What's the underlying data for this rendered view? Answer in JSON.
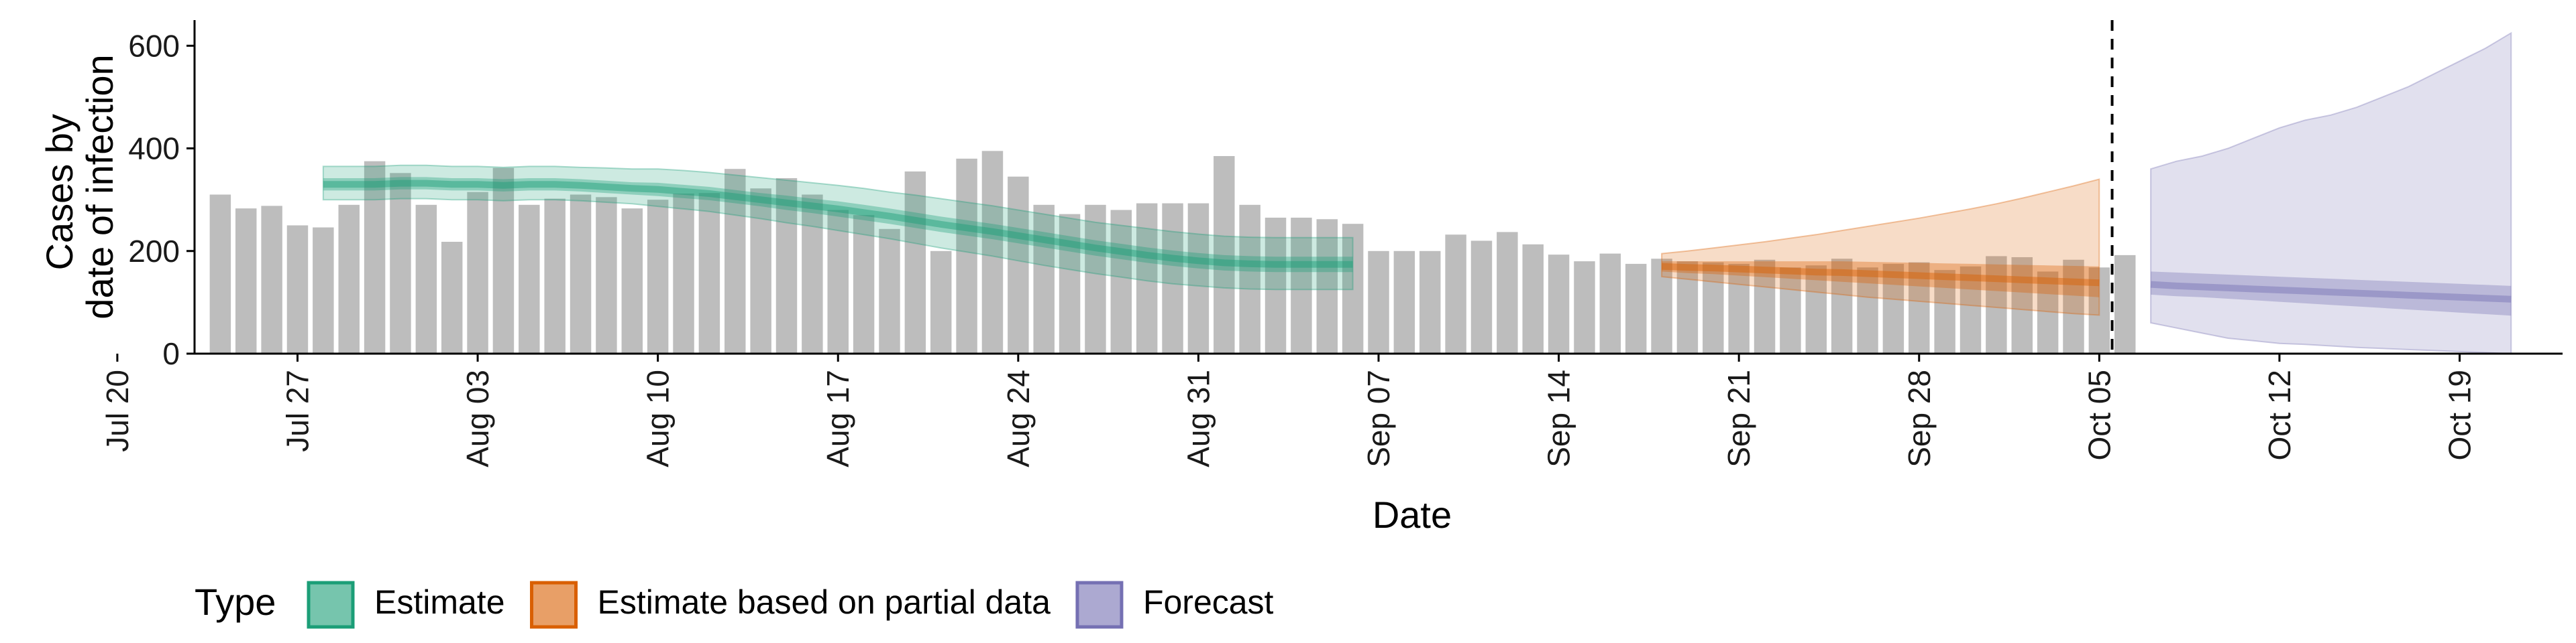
{
  "chart_data": {
    "type": "bar",
    "xlabel": "Date",
    "ylabel_lines": [
      "Cases by",
      "date of infection"
    ],
    "ylim": [
      0,
      650
    ],
    "yticks": [
      0,
      200,
      400,
      600
    ],
    "x_ticks": [
      "Jul 20",
      "Jul 27",
      "Aug 03",
      "Aug 10",
      "Aug 17",
      "Aug 24",
      "Aug 31",
      "Sep 07",
      "Sep 14",
      "Sep 21",
      "Sep 28",
      "Oct 05",
      "Oct 12",
      "Oct 19"
    ],
    "x_range_days": [
      -1,
      91
    ],
    "forecast_cutoff_day": 73.5,
    "bars": {
      "start_date": "Jul 24",
      "values": [
        310,
        283,
        288,
        250,
        246,
        290,
        375,
        352,
        290,
        218,
        315,
        362,
        290,
        302,
        310,
        305,
        283,
        300,
        312,
        313,
        360,
        322,
        342,
        310,
        280,
        270,
        243,
        355,
        200,
        380,
        395,
        345,
        290,
        272,
        290,
        280,
        293,
        293,
        293,
        385,
        290,
        265,
        265,
        262,
        253,
        200,
        200,
        200,
        232,
        220,
        237,
        213,
        193,
        180,
        195,
        175,
        185,
        180,
        178,
        175,
        183,
        168,
        172,
        185,
        168,
        175,
        178,
        163,
        170,
        190,
        188,
        160,
        183,
        168,
        192
      ]
    },
    "series": [
      {
        "name": "Estimate",
        "color": "#1b9e77",
        "start_day": 4,
        "median": [
          330,
          330,
          330,
          332,
          332,
          330,
          330,
          328,
          330,
          330,
          328,
          325,
          322,
          320,
          316,
          312,
          306,
          300,
          294,
          288,
          282,
          275,
          268,
          260,
          252,
          245,
          238,
          230,
          222,
          214,
          206,
          199,
          192,
          186,
          181,
          177,
          175,
          174,
          174,
          174,
          174
        ],
        "inner_lower": [
          318,
          318,
          318,
          320,
          320,
          318,
          318,
          316,
          318,
          318,
          316,
          313,
          310,
          307,
          303,
          299,
          293,
          287,
          280,
          274,
          267,
          260,
          253,
          245,
          237,
          230,
          223,
          215,
          207,
          199,
          191,
          184,
          177,
          171,
          166,
          162,
          160,
          159,
          159,
          159,
          159
        ],
        "inner_upper": [
          342,
          342,
          342,
          344,
          344,
          342,
          342,
          340,
          342,
          342,
          340,
          337,
          334,
          333,
          329,
          325,
          319,
          313,
          308,
          302,
          297,
          290,
          283,
          275,
          267,
          260,
          253,
          245,
          237,
          229,
          221,
          214,
          207,
          201,
          196,
          192,
          190,
          189,
          189,
          189,
          189
        ],
        "outer_lower": [
          300,
          300,
          300,
          302,
          302,
          300,
          300,
          298,
          300,
          300,
          298,
          295,
          292,
          287,
          282,
          277,
          270,
          263,
          255,
          248,
          240,
          232,
          224,
          215,
          206,
          198,
          190,
          181,
          172,
          164,
          156,
          149,
          142,
          136,
          132,
          128,
          126,
          125,
          125,
          125,
          125
        ],
        "outer_upper": [
          365,
          365,
          365,
          367,
          367,
          365,
          365,
          363,
          365,
          365,
          363,
          362,
          360,
          360,
          357,
          353,
          348,
          343,
          338,
          333,
          328,
          322,
          315,
          309,
          302,
          295,
          288,
          280,
          272,
          264,
          256,
          250,
          244,
          238,
          233,
          229,
          227,
          226,
          226,
          226,
          226
        ]
      },
      {
        "name": "Estimate based on partial data",
        "color": "#d95f02",
        "start_day": 56,
        "median": [
          170,
          168,
          167,
          165,
          163,
          161,
          159,
          158,
          156,
          154,
          152,
          150,
          148,
          146,
          144,
          142,
          140,
          138
        ],
        "inner_lower": [
          160,
          157,
          155,
          152,
          149,
          146,
          143,
          140,
          137,
          134,
          131,
          128,
          125,
          122,
          119,
          116,
          113,
          110
        ],
        "inner_upper": [
          180,
          180,
          180,
          180,
          180,
          180,
          180,
          180,
          179,
          178,
          177,
          176,
          175,
          174,
          173,
          172,
          171,
          170
        ],
        "outer_lower": [
          150,
          145,
          140,
          135,
          130,
          125,
          120,
          115,
          110,
          106,
          102,
          98,
          94,
          90,
          86,
          82,
          78,
          75
        ],
        "outer_upper": [
          195,
          200,
          206,
          212,
          218,
          225,
          232,
          240,
          248,
          256,
          264,
          273,
          282,
          292,
          303,
          315,
          327,
          340
        ]
      },
      {
        "name": "Forecast",
        "color": "#7570b3",
        "start_day": 75,
        "median": [
          135,
          132,
          130,
          128,
          126,
          124,
          122,
          120,
          118,
          116,
          114,
          112,
          110,
          108,
          106
        ],
        "inner_lower": [
          115,
          112,
          110,
          107,
          104,
          101,
          98,
          95,
          92,
          89,
          86,
          83,
          80,
          77,
          74
        ],
        "inner_upper": [
          160,
          158,
          156,
          154,
          152,
          150,
          148,
          146,
          144,
          142,
          140,
          138,
          136,
          134,
          132
        ],
        "outer_lower": [
          60,
          50,
          40,
          30,
          25,
          20,
          18,
          15,
          12,
          10,
          8,
          6,
          4,
          2,
          0
        ],
        "outer_upper": [
          360,
          375,
          385,
          400,
          420,
          440,
          455,
          465,
          480,
          500,
          520,
          545,
          570,
          595,
          625
        ]
      }
    ],
    "legend": {
      "title": "Type",
      "position": "bottom",
      "entries": [
        {
          "label": "Estimate",
          "color": "#1b9e77"
        },
        {
          "label": "Estimate based on partial data",
          "color": "#d95f02"
        },
        {
          "label": "Forecast",
          "color": "#7570b3"
        }
      ]
    },
    "grid": false
  }
}
